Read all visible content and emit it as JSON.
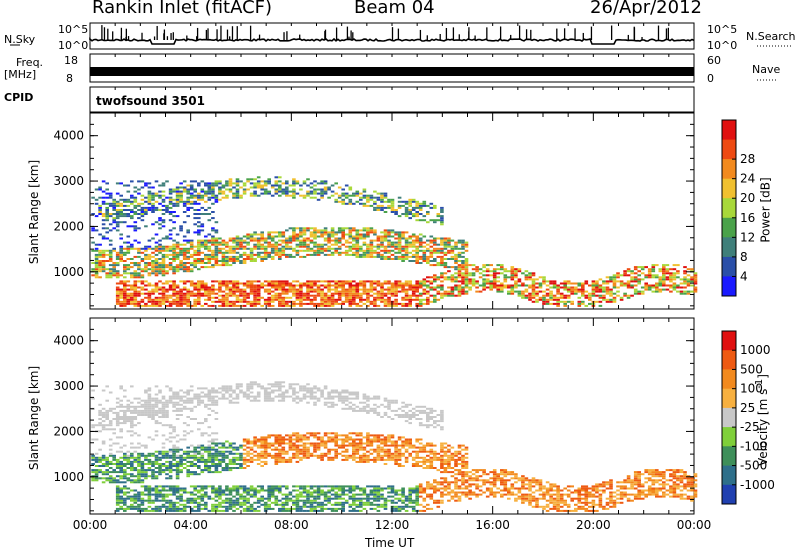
{
  "header": {
    "station": "Rankin Inlet (fitACF)",
    "beam": "Beam 04",
    "date": "26/Apr/2012"
  },
  "strip_labels": {
    "nsky": "N.Sky",
    "nsky_top": "10^5",
    "nsky_bottom": "10^0",
    "nsearch": "N.Search",
    "freq": "Freq.",
    "freq_unit": "[MHz]",
    "freq_top": "18",
    "freq_bottom": "8",
    "nave": "Nave",
    "nave_top": "60",
    "nave_bottom": "0",
    "cpid": "CPID",
    "cpid_value": "twofsound 3501"
  },
  "chart_data": [
    {
      "type": "heatmap",
      "title": "",
      "ylabel": "Slant Range [km]",
      "xlabel": "",
      "ylim": [
        180,
        4500
      ],
      "yticks": [
        "1000",
        "2000",
        "3000",
        "4000"
      ],
      "colorbar": {
        "label": "Power [dB]",
        "ticks": [
          "4",
          "8",
          "12",
          "16",
          "20",
          "24",
          "28"
        ],
        "colors": [
          "#1a1aff",
          "#2a4fa8",
          "#3f7f7a",
          "#4aa24a",
          "#a8d83a",
          "#f0c030",
          "#f28a1e",
          "#ee4a12",
          "#e01010"
        ]
      }
    },
    {
      "type": "heatmap",
      "title": "",
      "ylabel": "Slant Range [km]",
      "xlabel": "Time UT",
      "ylim": [
        180,
        4500
      ],
      "yticks": [
        "1000",
        "2000",
        "3000",
        "4000"
      ],
      "xticks": [
        "00:00",
        "04:00",
        "08:00",
        "12:00",
        "16:00",
        "20:00",
        "00:00"
      ],
      "colorbar": {
        "label": "Velocity [m s^-1]",
        "ticks": [
          "1000",
          "500",
          "100",
          "25",
          "-25",
          "-100",
          "-500",
          "-1000"
        ],
        "colors": [
          "#2040b0",
          "#2e6f8a",
          "#3e8f5a",
          "#7fcf3a",
          "#c8c8c8",
          "#f7b040",
          "#f28a1e",
          "#ee5a12",
          "#e01010"
        ]
      }
    }
  ],
  "colors": {
    "power_low": "#1a1aff",
    "power_high": "#e01010",
    "velocity_ground": "#c8c8c8"
  }
}
